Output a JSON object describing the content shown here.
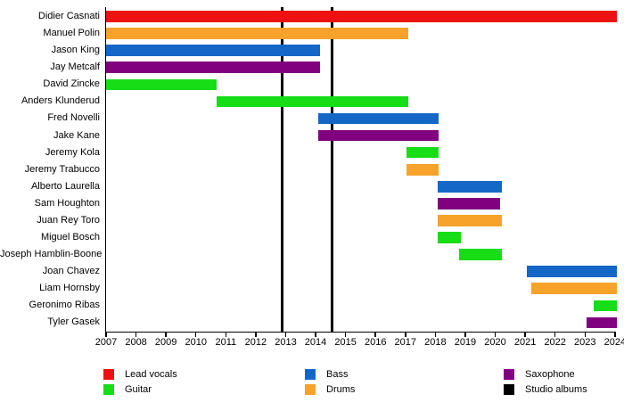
{
  "chart_data": {
    "type": "gantt",
    "title": "",
    "x_axis": {
      "min": 2007,
      "max": 2024,
      "ticks": [
        2007,
        2008,
        2009,
        2010,
        2011,
        2012,
        2013,
        2014,
        2015,
        2016,
        2017,
        2018,
        2019,
        2020,
        2021,
        2022,
        2023,
        2024
      ]
    },
    "roles": {
      "Lead vocals": "#ee1111",
      "Guitar": "#16dd16",
      "Bass": "#1467c6",
      "Drums": "#f7a32b",
      "Saxophone": "#800080"
    },
    "album_line_color": "#000000",
    "members": [
      {
        "name": "Didier Casnati",
        "role": "Lead vocals",
        "start": 2007.0,
        "end": 2024.05
      },
      {
        "name": "Manuel Polin",
        "role": "Drums",
        "start": 2007.0,
        "end": 2017.1
      },
      {
        "name": "Jason King",
        "role": "Bass",
        "start": 2007.0,
        "end": 2014.15
      },
      {
        "name": "Jay Metcalf",
        "role": "Saxophone",
        "start": 2007.0,
        "end": 2014.15
      },
      {
        "name": "David Zincke",
        "role": "Guitar",
        "start": 2007.0,
        "end": 2010.7
      },
      {
        "name": "Anders Klunderud",
        "role": "Guitar",
        "start": 2010.7,
        "end": 2017.1
      },
      {
        "name": "Fred Novelli",
        "role": "Bass",
        "start": 2014.1,
        "end": 2018.12
      },
      {
        "name": "Jake Kane",
        "role": "Saxophone",
        "start": 2014.1,
        "end": 2018.12
      },
      {
        "name": "Jeremy Kola",
        "role": "Guitar",
        "start": 2017.03,
        "end": 2018.1
      },
      {
        "name": "Jeremy Trabucco",
        "role": "Drums",
        "start": 2017.03,
        "end": 2018.1
      },
      {
        "name": "Alberto Laurella",
        "role": "Bass",
        "start": 2018.07,
        "end": 2020.22
      },
      {
        "name": "Sam Houghton",
        "role": "Saxophone",
        "start": 2018.07,
        "end": 2020.17
      },
      {
        "name": "Juan Rey Toro",
        "role": "Drums",
        "start": 2018.07,
        "end": 2020.22
      },
      {
        "name": "Miguel Bosch",
        "role": "Guitar",
        "start": 2018.07,
        "end": 2018.85
      },
      {
        "name": "Joseph Hamblin-Boone",
        "role": "Guitar",
        "start": 2018.8,
        "end": 2020.22
      },
      {
        "name": "Joan Chavez",
        "role": "Bass",
        "start": 2021.05,
        "end": 2024.05
      },
      {
        "name": "Liam Hornsby",
        "role": "Drums",
        "start": 2021.2,
        "end": 2024.05
      },
      {
        "name": "Geronimo Ribas",
        "role": "Guitar",
        "start": 2023.28,
        "end": 2024.05
      },
      {
        "name": "Tyler Gasek",
        "role": "Saxophone",
        "start": 2023.04,
        "end": 2024.05
      }
    ],
    "album_lines": [
      2012.88,
      2014.54
    ],
    "legend": [
      {
        "label": "Lead vocals",
        "color": "#ee1111"
      },
      {
        "label": "Guitar",
        "color": "#16dd16"
      },
      {
        "label": "Bass",
        "color": "#1467c6"
      },
      {
        "label": "Drums",
        "color": "#f7a32b"
      },
      {
        "label": "Saxophone",
        "color": "#800080"
      },
      {
        "label": "Studio albums",
        "color": "#000000"
      }
    ]
  }
}
